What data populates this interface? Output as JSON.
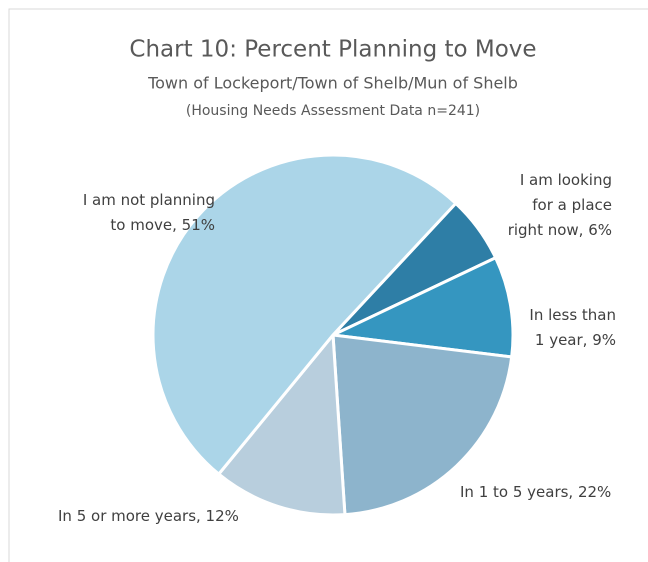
{
  "chart_data": {
    "type": "pie",
    "title": "Chart 10: Percent Planning to Move",
    "subtitle": "Town of Lockeport/Town of Shelb/Mun of Shelb",
    "note": "(Housing Needs Assessment Data n=241)",
    "values": [
      6,
      9,
      22,
      12,
      51
    ],
    "value_labels": [
      "I am looking for a place right now, 6%",
      "In less than 1 year, 9%",
      "In 1 to 5 years, 22%",
      "In 5 or more years, 12%",
      "I am not planning to move, 51%"
    ],
    "colors": [
      "#2e7ea6",
      "#3596c0",
      "#8db4cc",
      "#b8cedd",
      "#abd5e8"
    ]
  }
}
